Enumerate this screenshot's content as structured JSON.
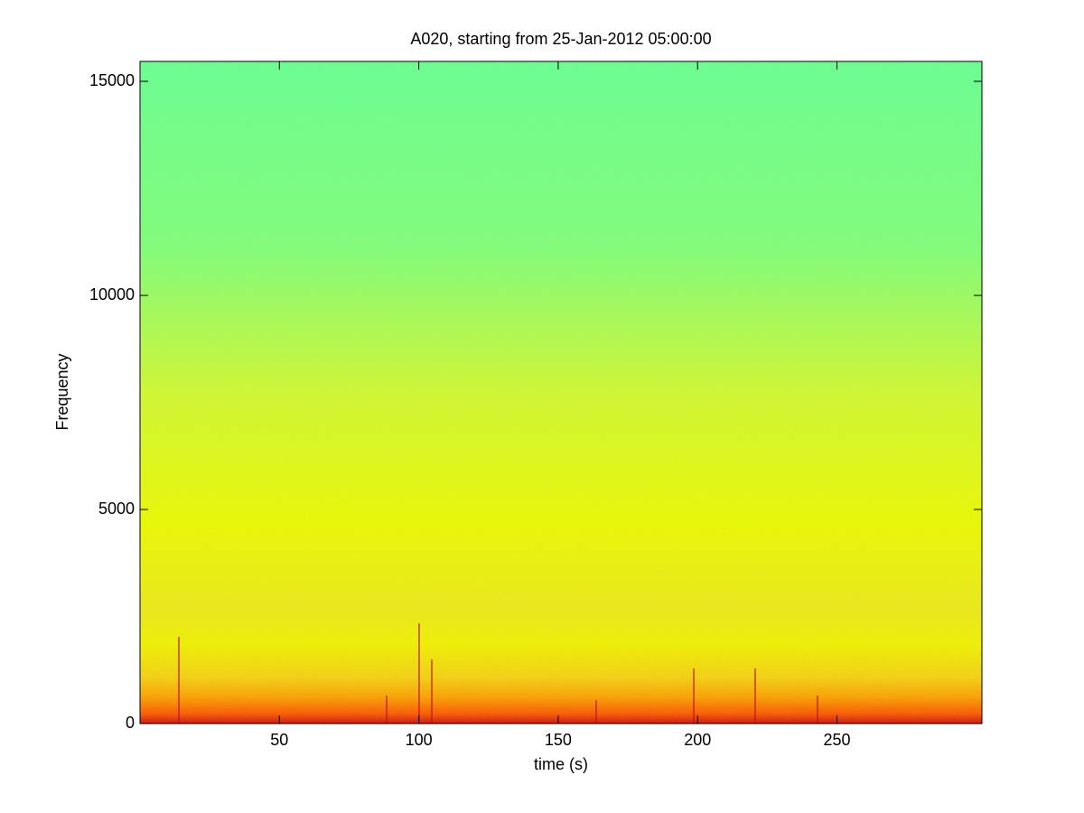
{
  "chart_data": {
    "type": "spectrogram",
    "title": "A020, starting from 25-Jan-2012 05:00:00",
    "x_label": "time (s)",
    "y_label": "Frequency",
    "xlim": [
      0,
      302
    ],
    "xticks": [
      50,
      100,
      150,
      200,
      250
    ],
    "ylim": [
      0,
      15465
    ],
    "yticks": [
      0,
      5000,
      10000,
      15000
    ]
  }
}
